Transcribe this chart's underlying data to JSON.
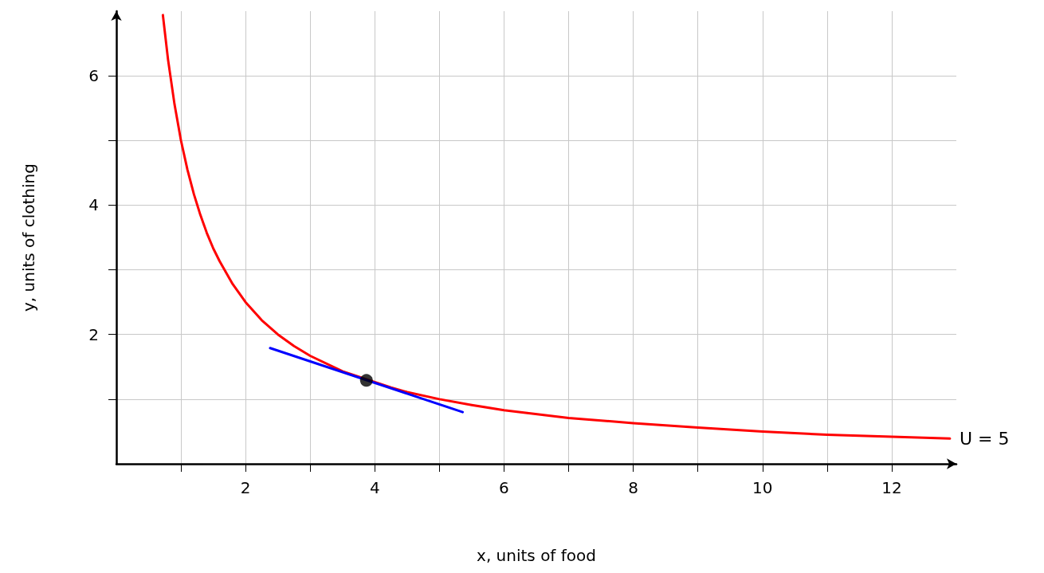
{
  "chart_data": {
    "type": "line",
    "xlabel": "x, units of food",
    "ylabel": "y, units of clothing",
    "xlim": [
      0,
      13
    ],
    "ylim": [
      0,
      7
    ],
    "xticks": [
      {
        "value": 1,
        "label": null
      },
      2,
      {
        "value": 3,
        "label": null
      },
      4,
      {
        "value": 5,
        "label": null
      },
      6,
      {
        "value": 7,
        "label": null
      },
      8,
      {
        "value": 9,
        "label": null
      },
      10,
      {
        "value": 11,
        "label": null
      },
      12
    ],
    "yticks": [
      {
        "value": 1,
        "label": null
      },
      2,
      {
        "value": 3,
        "label": null
      },
      4,
      {
        "value": 5,
        "label": null
      },
      6
    ],
    "grid": true,
    "legend": false,
    "marker": "none",
    "line_style": "solid",
    "series": [
      {
        "name": "U = 5",
        "color": "#ff0000",
        "x": [
          0.72,
          0.8,
          0.9,
          1,
          1.1,
          1.2,
          1.3,
          1.4,
          1.5,
          1.6,
          1.8,
          2,
          2.25,
          2.5,
          2.75,
          3,
          3.5,
          4.25,
          4.5,
          5,
          5.5,
          6,
          7,
          8,
          9,
          10,
          11,
          12,
          12.9
        ],
        "values": [
          6.94,
          6.25,
          5.56,
          5,
          4.55,
          4.17,
          3.85,
          3.57,
          3.33,
          3.13,
          2.78,
          2.5,
          2.22,
          2,
          1.82,
          1.67,
          1.43,
          1.18,
          1.11,
          1,
          0.91,
          0.83,
          0.71,
          0.63,
          0.56,
          0.5,
          0.45,
          0.42,
          0.39
        ]
      },
      {
        "color": "#0000ff",
        "x": [
          2.38,
          5.36
        ],
        "values": [
          1.79,
          0.8
        ]
      },
      {
        "type": "scatter",
        "marker": "circle",
        "color": "#000000",
        "x": [
          3.87
        ],
        "values": [
          1.29
        ]
      }
    ]
  }
}
